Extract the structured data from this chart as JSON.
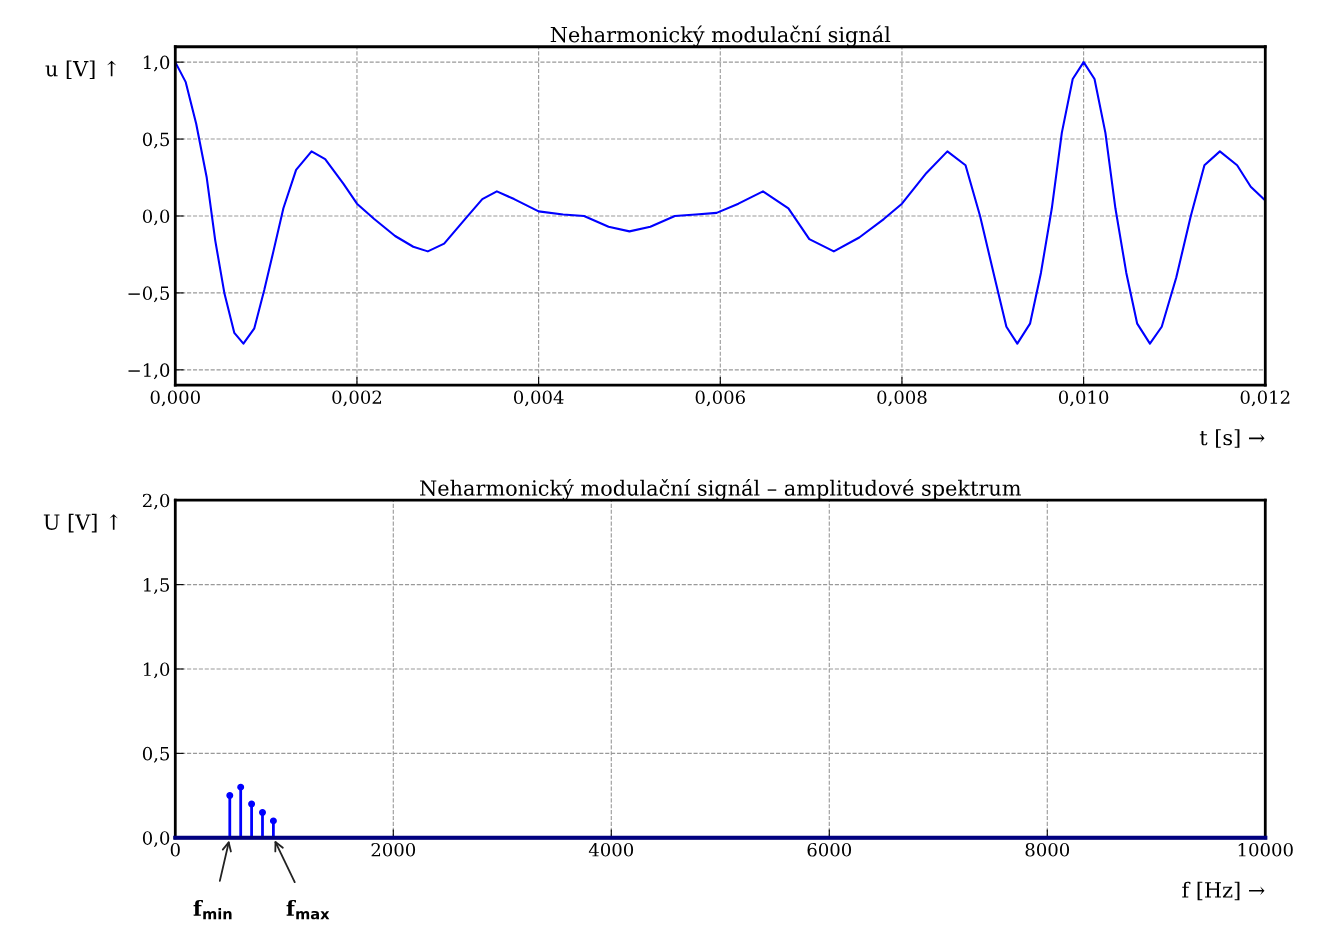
{
  "chart_data": [
    {
      "type": "line",
      "title": "Neharmonický modulační signál",
      "xlabel": "t [s] →",
      "ylabel": "u [V] ↑",
      "x": [
        0,
        0.000115,
        0.00023,
        0.000346,
        0.00044,
        0.00054,
        0.00065,
        0.00075,
        0.00087,
        0.00098,
        0.00108,
        0.00119,
        0.00133,
        0.0015,
        0.00165,
        0.00185,
        0.002,
        0.00219,
        0.00242,
        0.00262,
        0.00278,
        0.00296,
        0.00319,
        0.00338,
        0.00354,
        0.00373,
        0.004,
        0.00427,
        0.0045,
        0.00477,
        0.005,
        0.00523,
        0.0055,
        0.00573,
        0.00596,
        0.0062,
        0.00647,
        0.00675,
        0.00698,
        0.00725,
        0.00753,
        0.0078,
        0.008,
        0.00827,
        0.0085,
        0.0087,
        0.00886,
        0.00902,
        0.00915,
        0.00927,
        0.00941,
        0.00953,
        0.00965,
        0.00976,
        0.00988,
        0.01,
        0.01012,
        0.01024,
        0.01035,
        0.01047,
        0.01059,
        0.01073,
        0.01086,
        0.01102,
        0.01118,
        0.01133,
        0.0115,
        0.01169,
        0.01184,
        0.012
      ],
      "series": [
        {
          "color": "#0000ff",
          "values": [
            1.0,
            0.87,
            0.6,
            0.25,
            -0.16,
            -0.5,
            -0.76,
            -0.83,
            -0.73,
            -0.48,
            -0.23,
            0.05,
            0.3,
            0.42,
            0.37,
            0.21,
            0.08,
            -0.02,
            -0.13,
            -0.2,
            -0.23,
            -0.18,
            -0.02,
            0.11,
            0.16,
            0.11,
            0.03,
            0.01,
            0.0,
            -0.07,
            -0.1,
            -0.07,
            0.0,
            0.01,
            0.02,
            0.08,
            0.16,
            0.05,
            -0.15,
            -0.23,
            -0.14,
            -0.02,
            0.08,
            0.28,
            0.42,
            0.33,
            0.0,
            -0.4,
            -0.72,
            -0.83,
            -0.7,
            -0.37,
            0.05,
            0.54,
            0.89,
            1.0,
            0.89,
            0.54,
            0.05,
            -0.37,
            -0.7,
            -0.83,
            -0.72,
            -0.4,
            0.0,
            0.33,
            0.42,
            0.33,
            0.19,
            0.1
          ]
        }
      ],
      "xlim": [
        0,
        0.012
      ],
      "ylim": [
        -1.1,
        1.1
      ],
      "xticks": [
        {
          "value": 0,
          "label": "0,000"
        },
        {
          "value": 0.002,
          "label": "0,002"
        },
        {
          "value": 0.004,
          "label": "0,004"
        },
        {
          "value": 0.006,
          "label": "0,006"
        },
        {
          "value": 0.008,
          "label": "0,008"
        },
        {
          "value": 0.01,
          "label": "0,010"
        },
        {
          "value": 0.012,
          "label": "0,012"
        }
      ],
      "yticks": [
        {
          "value": -1.0,
          "label": "−1,0"
        },
        {
          "value": -0.5,
          "label": "−0,5"
        },
        {
          "value": 0.0,
          "label": "0,0"
        },
        {
          "value": 0.5,
          "label": "0,5"
        },
        {
          "value": 1.0,
          "label": "1,0"
        }
      ],
      "grid": true,
      "line_style": "solid",
      "marker": "none"
    },
    {
      "type": "lollipop",
      "title": "Neharmonický modulační signál – amplitudové spektrum",
      "xlabel": "f [Hz] →",
      "ylabel": "U [V] ↑",
      "x": [
        500,
        600,
        700,
        800,
        900
      ],
      "series": [
        {
          "color": "#0000ff",
          "values": [
            0.25,
            0.3,
            0.2,
            0.15,
            0.1
          ]
        }
      ],
      "xlim": [
        0,
        10000
      ],
      "ylim": [
        0,
        2.0
      ],
      "xticks": [
        0,
        2000,
        4000,
        6000,
        8000,
        10000
      ],
      "yticks": [
        {
          "value": 0.0,
          "label": "0,0"
        },
        {
          "value": 0.5,
          "label": "0,5"
        },
        {
          "value": 1.0,
          "label": "1,0"
        },
        {
          "value": 1.5,
          "label": "1,5"
        },
        {
          "value": 2.0,
          "label": "2,0"
        }
      ],
      "grid": true,
      "marker": "circle",
      "ref_lines": [
        {
          "axis": "y",
          "value": 0,
          "color": "#000080"
        }
      ],
      "annotations": [
        "f$_{min}$",
        "f$_{max}$"
      ]
    }
  ]
}
